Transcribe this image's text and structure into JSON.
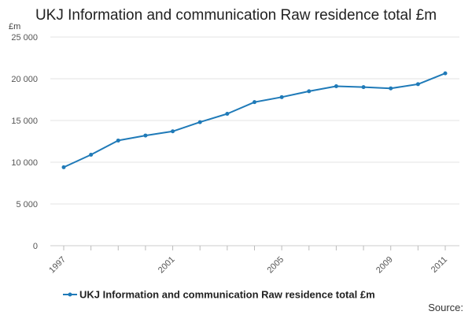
{
  "chart_data": {
    "type": "line",
    "title": "UKJ Information and communication Raw residence total £m",
    "ylabel": "£m",
    "xlabel": "",
    "x": [
      1997,
      1998,
      1999,
      2000,
      2001,
      2002,
      2003,
      2004,
      2005,
      2006,
      2007,
      2008,
      2009,
      2010,
      2011
    ],
    "x_tick_labels": [
      "1997",
      "2001",
      "2005",
      "2009",
      "2011"
    ],
    "y_ticks": [
      0,
      5000,
      10000,
      15000,
      20000,
      25000
    ],
    "y_tick_labels": [
      "0",
      "5 000",
      "10 000",
      "15 000",
      "20 000",
      "25 000"
    ],
    "ylim": [
      0,
      25000
    ],
    "grid": true,
    "legend_position": "bottom",
    "series": [
      {
        "name": "UKJ Information and communication Raw residence total £m",
        "color": "#1f7ab8",
        "values": [
          9400,
          10900,
          12600,
          13200,
          13700,
          14800,
          15800,
          17200,
          17800,
          18500,
          19100,
          19000,
          18850,
          19350,
          20650
        ]
      }
    ],
    "source_label": "Source:"
  }
}
